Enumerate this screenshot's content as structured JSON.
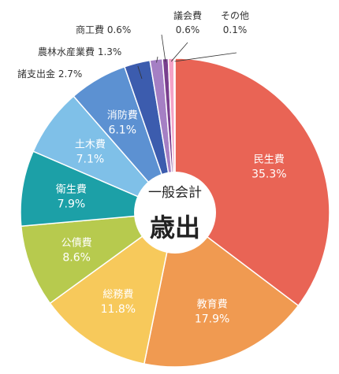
{
  "chart_data": {
    "type": "pie",
    "center_title": "一般会計",
    "center_main": "歳出",
    "slices": [
      {
        "name": "民生費",
        "value": 35.3,
        "label": "35.3%",
        "color": "#E96455",
        "placement": "inside"
      },
      {
        "name": "教育費",
        "value": 17.9,
        "label": "17.9%",
        "color": "#F09A51",
        "placement": "inside"
      },
      {
        "name": "総務費",
        "value": 11.8,
        "label": "11.8%",
        "color": "#F7C95B",
        "placement": "inside"
      },
      {
        "name": "公債費",
        "value": 8.6,
        "label": "8.6%",
        "color": "#B7CA4E",
        "placement": "inside"
      },
      {
        "name": "衛生費",
        "value": 7.9,
        "label": "7.9%",
        "color": "#1CA0A7",
        "placement": "inside"
      },
      {
        "name": "土木費",
        "value": 7.1,
        "label": "7.1%",
        "color": "#7FC0E8",
        "placement": "inside"
      },
      {
        "name": "消防費",
        "value": 6.1,
        "label": "6.1%",
        "color": "#5C91D2",
        "placement": "inside"
      },
      {
        "name": "諸支出金",
        "value": 2.7,
        "label": "2.7%",
        "color": "#3C5CAE",
        "placement": "outside"
      },
      {
        "name": "農林水産業費",
        "value": 1.3,
        "label": "1.3%",
        "color": "#A57FC4",
        "placement": "outside"
      },
      {
        "name": "商工費",
        "value": 0.6,
        "label": "0.6%",
        "color": "#7A3F8E",
        "placement": "outside"
      },
      {
        "name": "議会費",
        "value": 0.6,
        "label": "0.6%",
        "color": "#F3A2C6",
        "placement": "outside"
      },
      {
        "name": "その他",
        "value": 0.1,
        "label": "0.1%",
        "color": "#F7C7DA",
        "placement": "outside"
      }
    ]
  }
}
